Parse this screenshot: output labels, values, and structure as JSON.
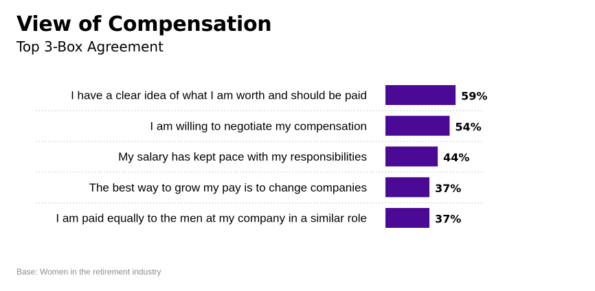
{
  "header": {
    "title": "View of Compensation",
    "subtitle": "Top 3-Box Agreement"
  },
  "footnote": "Base: Women in the retirement industry",
  "colors": {
    "bar": "#4B0A96",
    "divider": "#c8c8c8",
    "text": "#000000",
    "footnote": "#8c8c8c"
  },
  "chart_data": {
    "type": "bar",
    "orientation": "horizontal",
    "categories": [
      "I have a clear idea of what I am worth and should be paid",
      "I am willing to negotiate my compensation",
      "My salary has kept pace with my responsibilities",
      "The best way to grow my pay is to change companies",
      "I am paid equally to the men at my company in a similar role"
    ],
    "values": [
      59,
      54,
      44,
      37,
      37
    ],
    "value_labels": [
      "59%",
      "54%",
      "44%",
      "37%",
      "37%"
    ],
    "unit": "%",
    "grid": false,
    "legend": "none"
  }
}
